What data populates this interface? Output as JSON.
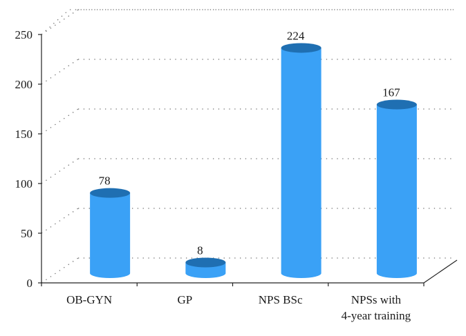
{
  "chart_data": {
    "type": "bar",
    "categories": [
      [
        "OB-GYN"
      ],
      [
        "GP"
      ],
      [
        "NPS BSc"
      ],
      [
        "NPSs with",
        "4-year training"
      ]
    ],
    "values": [
      78,
      8,
      224,
      167
    ],
    "data_labels": [
      "78",
      "8",
      "224",
      "167"
    ],
    "yticks": [
      0,
      50,
      100,
      150,
      200,
      250
    ],
    "ylim": [
      0,
      250
    ],
    "title": "",
    "xlabel": "",
    "ylabel": "",
    "grid": "dotted",
    "style": "3d-cylinder",
    "colors": {
      "bar_body": "#3aa1f6",
      "bar_top": "#1f6fb2",
      "axis": "#222222",
      "grid": "#6d6d6d"
    }
  }
}
